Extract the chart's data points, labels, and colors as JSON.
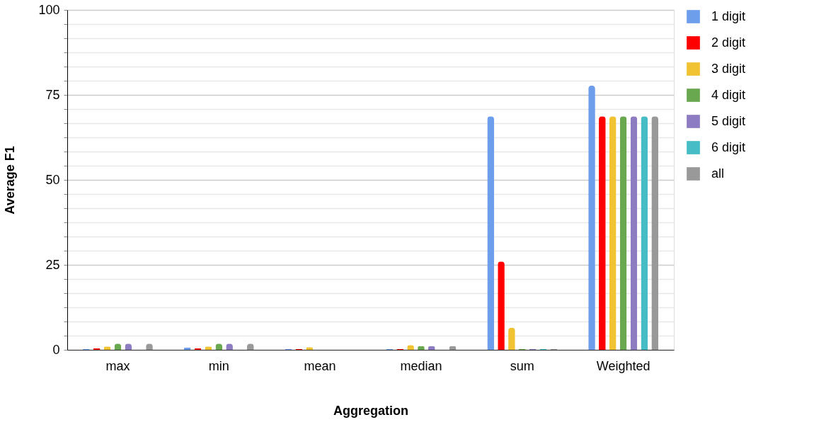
{
  "chart_data": {
    "type": "bar",
    "xlabel": "Aggregation",
    "ylabel": "Average F1",
    "categories": [
      "max",
      "min",
      "mean",
      "median",
      "sum",
      "Weighted"
    ],
    "series": [
      {
        "name": "1 digit",
        "color": "#6d9eeb",
        "values": [
          0.2,
          0.6,
          0.2,
          0.2,
          68.7,
          77.7
        ]
      },
      {
        "name": "2 digit",
        "color": "#ff0000",
        "values": [
          0.4,
          0.4,
          0.2,
          0.2,
          26,
          68.7
        ]
      },
      {
        "name": "3 digit",
        "color": "#f1c232",
        "values": [
          1,
          1,
          0.8,
          1.4,
          6.5,
          68.7
        ]
      },
      {
        "name": "4 digit",
        "color": "#6aa84f",
        "values": [
          1.8,
          1.8,
          0,
          1.1,
          0.3,
          68.7
        ]
      },
      {
        "name": "5 digit",
        "color": "#8e7cc3",
        "values": [
          1.8,
          1.8,
          0,
          1.1,
          0.3,
          68.7
        ]
      },
      {
        "name": "6 digit",
        "color": "#45bcc6",
        "values": [
          0,
          0,
          0,
          0,
          0.3,
          68.7
        ]
      },
      {
        "name": "all",
        "color": "#999999",
        "values": [
          1.8,
          1.8,
          0,
          1.1,
          0.3,
          68.7
        ]
      }
    ],
    "ylim": [
      0,
      100
    ],
    "yticks": [
      0,
      {
        "value": 4.17,
        "label": null
      },
      {
        "value": 8.33,
        "label": null
      },
      {
        "value": 12.5,
        "label": null
      },
      {
        "value": 16.67,
        "label": null
      },
      {
        "value": 20.83,
        "label": null
      },
      25,
      {
        "value": 29.17,
        "label": null
      },
      {
        "value": 33.33,
        "label": null
      },
      {
        "value": 37.5,
        "label": null
      },
      {
        "value": 41.67,
        "label": null
      },
      {
        "value": 45.83,
        "label": null
      },
      50,
      {
        "value": 54.17,
        "label": null
      },
      {
        "value": 58.33,
        "label": null
      },
      {
        "value": 62.5,
        "label": null
      },
      {
        "value": 66.67,
        "label": null
      },
      {
        "value": 70.83,
        "label": null
      },
      75,
      {
        "value": 79.17,
        "label": null
      },
      {
        "value": 83.33,
        "label": null
      },
      {
        "value": 87.5,
        "label": null
      },
      {
        "value": 91.67,
        "label": null
      },
      {
        "value": 95.83,
        "label": null
      },
      100
    ],
    "grid": true,
    "legend": "right"
  }
}
